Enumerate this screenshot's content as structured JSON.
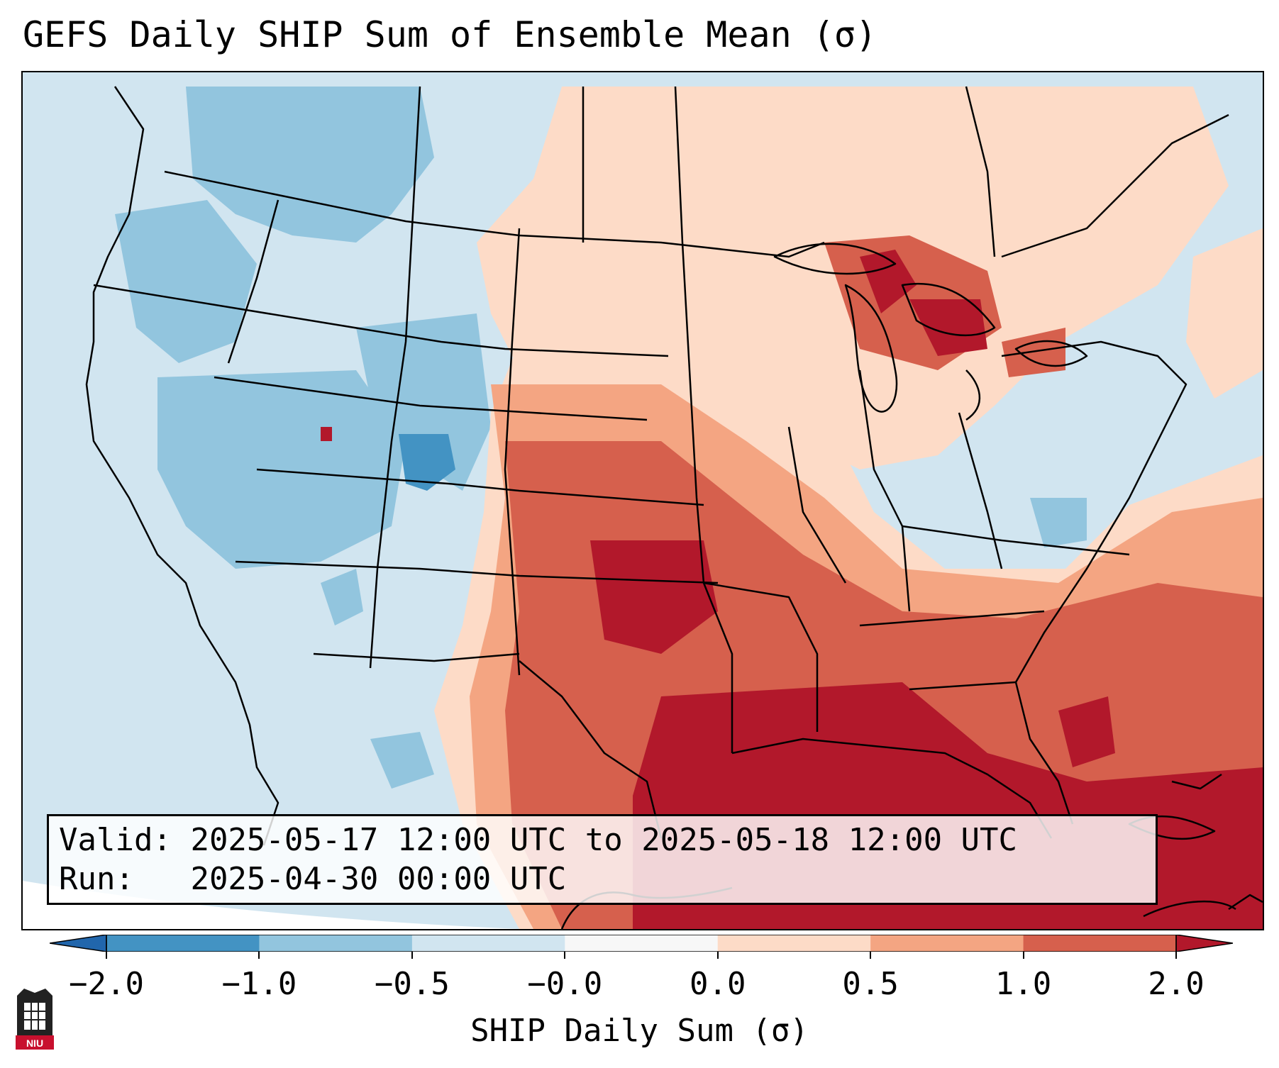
{
  "title": "GEFS Daily SHIP Sum of Ensemble Mean (σ)",
  "info": {
    "valid_prefix": "Valid:",
    "valid_value": "2025-05-17 12:00 UTC to 2025-05-18 12:00 UTC",
    "run_prefix": "Run:",
    "run_value": "2025-04-30 00:00 UTC"
  },
  "colorbar": {
    "label": "SHIP Daily Sum (σ)",
    "ticks": [
      "−2.0",
      "−1.0",
      "−0.5",
      "−0.0",
      "0.0",
      "0.5",
      "1.0",
      "2.0"
    ],
    "colors": [
      "#2166ac",
      "#4393c3",
      "#92c5de",
      "#d1e5f0",
      "#f7f7f7",
      "#fddbc7",
      "#f4a582",
      "#d6604d",
      "#b2182b"
    ],
    "extend": "both"
  },
  "logo": {
    "text": "NIU",
    "color": "#c8102e"
  }
}
